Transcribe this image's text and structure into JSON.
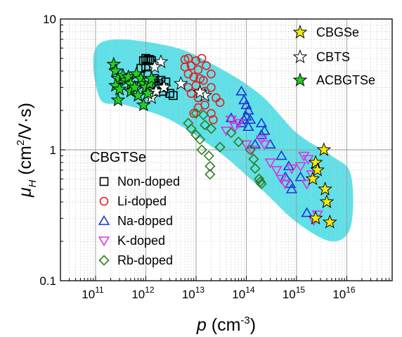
{
  "chart_data": {
    "type": "scatter",
    "title": "",
    "xlabel": {
      "main": "p",
      "open": " (cm",
      "sup": "-3",
      "close": ")"
    },
    "ylabel": {
      "main": "μ",
      "sub": "H",
      "open": " (cm",
      "sup": "2",
      "close": "/V·s)"
    },
    "x_scale": "log",
    "y_scale": "log",
    "xlim": [
      20000000000.0,
      8e+16
    ],
    "ylim": [
      0.1,
      10
    ],
    "grid": true,
    "x_ticks": [
      {
        "value": 100000000000.0,
        "base": "10",
        "exp": "11"
      },
      {
        "value": 1000000000000.0,
        "base": "10",
        "exp": "12"
      },
      {
        "value": 10000000000000.0,
        "base": "10",
        "exp": "13"
      },
      {
        "value": 100000000000000.0,
        "base": "10",
        "exp": "14"
      },
      {
        "value": 1000000000000000.0,
        "base": "10",
        "exp": "15"
      },
      {
        "value": 1e+16,
        "base": "10",
        "exp": "16"
      }
    ],
    "y_ticks": [
      {
        "value": 0.1,
        "label": "0.1"
      },
      {
        "value": 1,
        "label": "1"
      },
      {
        "value": 10,
        "label": "10"
      }
    ],
    "band_color": "#5ee0e8",
    "legend_group_title": "CBGTSe",
    "series": [
      {
        "name": "Non-doped",
        "marker": "square",
        "color": "#000000",
        "fill": "none",
        "legend": "bottom-left",
        "points": [
          [
            800000000000.0,
            4.2
          ],
          [
            900000000000.0,
            4.8
          ],
          [
            1000000000000.0,
            5.0
          ],
          [
            1100000000000.0,
            4.9
          ],
          [
            1200000000000.0,
            4.9
          ],
          [
            1300000000000.0,
            4.8
          ],
          [
            1000000000000.0,
            4.3
          ],
          [
            1100000000000.0,
            3.8
          ],
          [
            1500000000000.0,
            3.5
          ],
          [
            1600000000000.0,
            3.1
          ],
          [
            1800000000000.0,
            3.2
          ],
          [
            2000000000000.0,
            3.4
          ],
          [
            2300000000000.0,
            3.0
          ],
          [
            2500000000000.0,
            3.3
          ],
          [
            2200000000000.0,
            2.8
          ],
          [
            3000000000000.0,
            2.7
          ],
          [
            3500000000000.0,
            2.6
          ],
          [
            1300000000000.0,
            2.8
          ]
        ]
      },
      {
        "name": "Li-doped",
        "marker": "circle",
        "color": "#e02020",
        "fill": "none",
        "legend": "bottom-left",
        "points": [
          [
            6000000000000.0,
            4.9
          ],
          [
            7000000000000.0,
            5.0
          ],
          [
            10000000000000.0,
            4.8
          ],
          [
            13000000000000.0,
            5.0
          ],
          [
            6000000000000.0,
            4.3
          ],
          [
            8000000000000.0,
            4.4
          ],
          [
            11000000000000.0,
            4.1
          ],
          [
            16000000000000.0,
            4.4
          ],
          [
            20000000000000.0,
            3.8
          ],
          [
            7000000000000.0,
            3.8
          ],
          [
            9000000000000.0,
            3.6
          ],
          [
            12000000000000.0,
            3.5
          ],
          [
            7000000000000.0,
            3.0
          ],
          [
            10000000000000.0,
            3.1
          ],
          [
            14000000000000.0,
            3.4
          ],
          [
            20000000000000.0,
            3.0
          ],
          [
            8000000000000.0,
            2.7
          ],
          [
            11000000000000.0,
            2.5
          ],
          [
            15000000000000.0,
            2.8
          ],
          [
            25000000000000.0,
            2.5
          ],
          [
            11000000000000.0,
            2.1
          ],
          [
            15000000000000.0,
            2.2
          ],
          [
            9000000000000.0,
            1.9
          ],
          [
            20000000000000.0,
            1.9
          ],
          [
            30000000000000.0,
            2.3
          ],
          [
            22000000000000.0,
            1.7
          ]
        ]
      },
      {
        "name": "Na-doped",
        "marker": "triangle-up",
        "color": "#1a35d6",
        "fill": "none",
        "legend": "bottom-left",
        "points": [
          [
            80000000000000.0,
            2.8
          ],
          [
            90000000000000.0,
            2.4
          ],
          [
            100000000000000.0,
            2.2
          ],
          [
            110000000000000.0,
            2.0
          ],
          [
            100000000000000.0,
            1.8
          ],
          [
            120000000000000.0,
            1.7
          ],
          [
            80000000000000.0,
            1.6
          ],
          [
            90000000000000.0,
            1.7
          ],
          [
            110000000000000.0,
            1.5
          ],
          [
            200000000000000.0,
            1.6
          ],
          [
            230000000000000.0,
            1.4
          ],
          [
            200000000000000.0,
            1.3
          ],
          [
            150000000000000.0,
            1.1
          ],
          [
            300000000000000.0,
            1.1
          ],
          [
            500000000000000.0,
            0.9
          ],
          [
            700000000000000.0,
            0.75
          ],
          [
            600000000000000.0,
            0.62
          ],
          [
            750000000000000.0,
            0.55
          ],
          [
            800000000000000.0,
            0.5
          ],
          [
            1200000000000000.0,
            0.62
          ],
          [
            1600000000000000.0,
            0.33
          ],
          [
            50000000000000.0,
            1.75
          ]
        ]
      },
      {
        "name": "K-doped",
        "marker": "triangle-down",
        "color": "#e030e0",
        "fill": "none",
        "legend": "bottom-left",
        "points": [
          [
            50000000000000.0,
            1.7
          ],
          [
            60000000000000.0,
            1.5
          ],
          [
            40000000000000.0,
            1.4
          ],
          [
            70000000000000.0,
            1.6
          ],
          [
            100000000000000.0,
            1.1
          ],
          [
            130000000000000.0,
            1.0
          ],
          [
            200000000000000.0,
            1.2
          ],
          [
            230000000000000.0,
            1.1
          ],
          [
            300000000000000.0,
            0.8
          ],
          [
            400000000000000.0,
            0.7
          ],
          [
            500000000000000.0,
            0.6
          ],
          [
            600000000000000.0,
            0.55
          ],
          [
            800000000000000.0,
            0.72
          ],
          [
            1200000000000000.0,
            0.75
          ],
          [
            1400000000000000.0,
            0.9
          ],
          [
            1700000000000000.0,
            0.85
          ],
          [
            2000000000000000.0,
            0.65
          ],
          [
            1600000000000000.0,
            0.55
          ],
          [
            2200000000000000.0,
            0.29
          ],
          [
            2600000000000000.0,
            0.32
          ]
        ]
      },
      {
        "name": "Rb-doped",
        "marker": "diamond",
        "color": "#2e7d1f",
        "fill": "none",
        "legend": "bottom-left",
        "points": [
          [
            7000000000000.0,
            1.6
          ],
          [
            8000000000000.0,
            1.45
          ],
          [
            10000000000000.0,
            1.3
          ],
          [
            12000000000000.0,
            1.2
          ],
          [
            13000000000000.0,
            1.0
          ],
          [
            18000000000000.0,
            0.9
          ],
          [
            19000000000000.0,
            0.75
          ],
          [
            19000000000000.0,
            0.65
          ],
          [
            30000000000000.0,
            1.05
          ],
          [
            10000000000000.0,
            1.9
          ],
          [
            14000000000000.0,
            1.85
          ],
          [
            15000000000000.0,
            1.55
          ],
          [
            20000000000000.0,
            1.45
          ],
          [
            50000000000000.0,
            1.35
          ],
          [
            70000000000000.0,
            1.15
          ],
          [
            120000000000000.0,
            1.0
          ],
          [
            140000000000000.0,
            0.85
          ],
          [
            150000000000000.0,
            0.72
          ],
          [
            180000000000000.0,
            0.6
          ],
          [
            190000000000000.0,
            0.57
          ],
          [
            200000000000000.0,
            0.55
          ]
        ]
      },
      {
        "name": "CBGSe",
        "marker": "star",
        "color": "#000000",
        "fill": "#f5e90f",
        "legend": "top-right",
        "points": [
          [
            3500000000000000.0,
            1.0
          ],
          [
            2400000000000000.0,
            0.8
          ],
          [
            2100000000000000.0,
            0.6
          ],
          [
            2600000000000000.0,
            0.7
          ],
          [
            3700000000000000.0,
            0.5
          ],
          [
            4000000000000000.0,
            0.4
          ],
          [
            2400000000000000.0,
            0.3
          ],
          [
            4600000000000000.0,
            0.28
          ]
        ]
      },
      {
        "name": "CBTS",
        "marker": "star",
        "color": "#000000",
        "fill": "#ffffff",
        "legend": "top-right",
        "points": [
          [
            2000000000000.0,
            4.7
          ],
          [
            1500000000000.0,
            4.3
          ],
          [
            1300000000000.0,
            2.5
          ],
          [
            1600000000000.0,
            2.8
          ],
          [
            2300000000000.0,
            3.0
          ],
          [
            5000000000000.0,
            3.2
          ],
          [
            15000000000000.0,
            2.6
          ],
          [
            12000000000000.0,
            2.75
          ]
        ]
      },
      {
        "name": "ACBGTSe",
        "marker": "star",
        "color": "#000000",
        "fill": "#22d022",
        "legend": "top-right",
        "points": [
          [
            230000000000.0,
            4.5
          ],
          [
            250000000000.0,
            4.0
          ],
          [
            280000000000.0,
            3.5
          ],
          [
            250000000000.0,
            3.1
          ],
          [
            300000000000.0,
            2.9
          ],
          [
            280000000000.0,
            2.4
          ],
          [
            350000000000.0,
            3.7
          ],
          [
            400000000000.0,
            3.4
          ],
          [
            450000000000.0,
            3.6
          ],
          [
            500000000000.0,
            3.2
          ],
          [
            500000000000.0,
            2.8
          ],
          [
            600000000000.0,
            3.0
          ],
          [
            650000000000.0,
            3.8
          ],
          [
            700000000000.0,
            2.6
          ],
          [
            800000000000.0,
            3.5
          ],
          [
            900000000000.0,
            3.2
          ],
          [
            900000000000.0,
            2.2
          ],
          [
            1000000000000.0,
            3.0
          ],
          [
            1100000000000.0,
            2.7
          ],
          [
            1200000000000.0,
            3.2
          ],
          [
            1300000000000.0,
            3.5
          ]
        ]
      }
    ]
  }
}
